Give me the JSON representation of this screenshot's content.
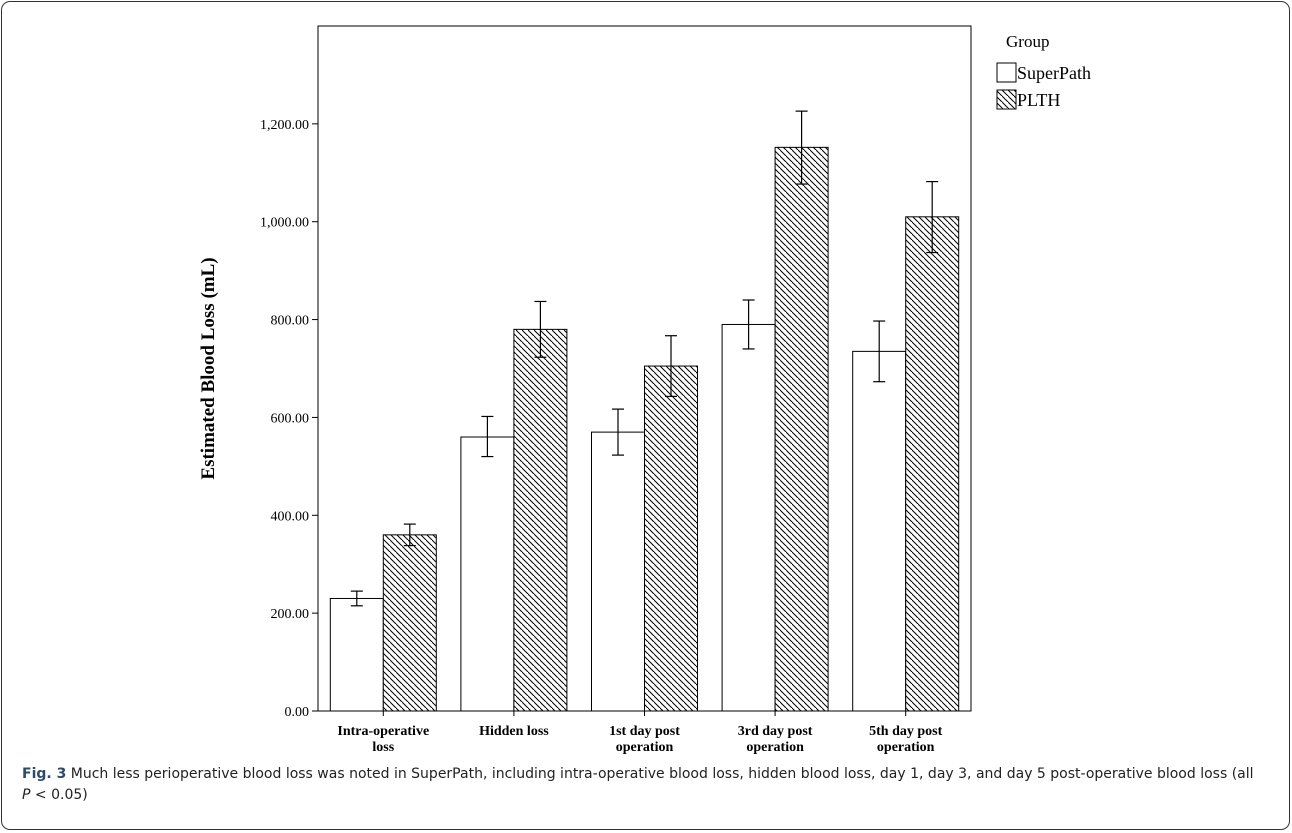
{
  "chart_data": {
    "type": "bar",
    "ylabel": "Estimated Blood Loss (mL)",
    "xlabel": "",
    "ylim": [
      0,
      1400
    ],
    "yticks": [
      0,
      200,
      400,
      600,
      800,
      1000,
      1200
    ],
    "ytick_labels": [
      "0.00",
      "200.00",
      "400.00",
      "600.00",
      "800.00",
      "1,000.00",
      "1,200.00"
    ],
    "categories": [
      [
        "Intra-operative",
        "loss"
      ],
      [
        "Hidden loss"
      ],
      [
        "1st day post",
        "operation"
      ],
      [
        "3rd day post",
        "operation"
      ],
      [
        "5th day post",
        "operation"
      ]
    ],
    "legend_title": "Group",
    "legend_position": "top-right, outside plot",
    "grid": false,
    "series": [
      {
        "name": "SuperPath",
        "fill": "white",
        "values": [
          230,
          560,
          570,
          790,
          735
        ],
        "error_low": [
          215,
          520,
          523,
          740,
          673
        ],
        "error_high": [
          245,
          602,
          617,
          840,
          797
        ]
      },
      {
        "name": "PLTH",
        "fill": "diagonal-hatch",
        "values": [
          360,
          780,
          705,
          1152,
          1010
        ],
        "error_low": [
          338,
          723,
          643,
          1077,
          937
        ],
        "error_high": [
          382,
          837,
          767,
          1226,
          1082
        ]
      }
    ]
  },
  "caption": {
    "label": "Fig. 3",
    "text_part1": "Much less perioperative blood loss was noted in SuperPath, including intra-operative blood loss, hidden blood loss, day 1, day 3, and day 5 post-operative blood loss (all ",
    "p_symbol": "P",
    "text_part2": " < 0.05)"
  }
}
